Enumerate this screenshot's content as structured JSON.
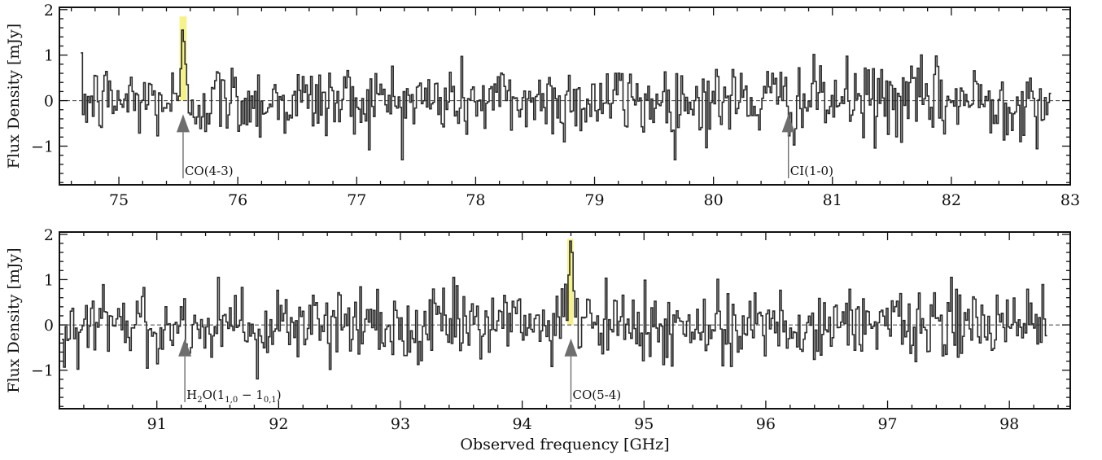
{
  "chart_data": [
    {
      "type": "line",
      "panel": "top",
      "xlabel": "",
      "ylabel": "Flux Density [mJy]",
      "xlim": [
        74.5,
        83.0
      ],
      "ylim": [
        -1.85,
        2.05
      ],
      "xticks": [
        "75",
        "76",
        "77",
        "78",
        "79",
        "80",
        "81",
        "82",
        "83"
      ],
      "yticks": [
        "−1",
        "0",
        "1",
        "2"
      ],
      "grid": false,
      "step": true,
      "noise_rms_mjy": 0.42,
      "x_start": 74.68,
      "x_end": 82.83,
      "channel_width": 0.0139,
      "zero_line": 0,
      "highlight": {
        "x": [
          75.51,
          75.57
        ],
        "color": "#f6f28a",
        "peak": 1.85
      },
      "series": [
        {
          "x": [
            75.5,
            75.51,
            75.53,
            75.54,
            75.55,
            75.57,
            75.58
          ],
          "values": [
            0.1,
            0.7,
            1.55,
            1.3,
            0.8,
            0.35,
            0.05
          ]
        }
      ],
      "line_markers": [
        {
          "label": "CO(4-3)",
          "x": 75.54
        },
        {
          "label": "CI(1-0)",
          "x": 80.63
        }
      ]
    },
    {
      "type": "line",
      "panel": "bottom",
      "xlabel": "Observed frequency [GHz]",
      "ylabel": "Flux Density [mJy]",
      "xlim": [
        90.2,
        98.5
      ],
      "ylim": [
        -1.85,
        2.05
      ],
      "xticks": [
        "91",
        "92",
        "93",
        "94",
        "95",
        "96",
        "97",
        "98"
      ],
      "yticks": [
        "−1",
        "0",
        "1",
        "2"
      ],
      "grid": false,
      "step": true,
      "noise_rms_mjy": 0.42,
      "x_start": 90.22,
      "x_end": 98.3,
      "channel_width": 0.0139,
      "zero_line": 0,
      "highlight": {
        "x": [
          94.37,
          94.42
        ],
        "color": "#f6f28a",
        "peak": 1.9
      },
      "series": [
        {
          "x": [
            94.36,
            94.37,
            94.39,
            94.4,
            94.41,
            94.43
          ],
          "values": [
            0.1,
            1.1,
            1.85,
            1.6,
            0.75,
            0.1
          ]
        }
      ],
      "line_markers": [
        {
          "label": "H$_2$O(1$_{1,0}$ − 1$_{0,1}$)",
          "x": 91.23
        },
        {
          "label": "CO(5-4)",
          "x": 94.4
        }
      ]
    }
  ],
  "colors": {
    "line": "#2b2b2b",
    "marker": "#6e6e6e",
    "highlight": "#f6f28a"
  }
}
